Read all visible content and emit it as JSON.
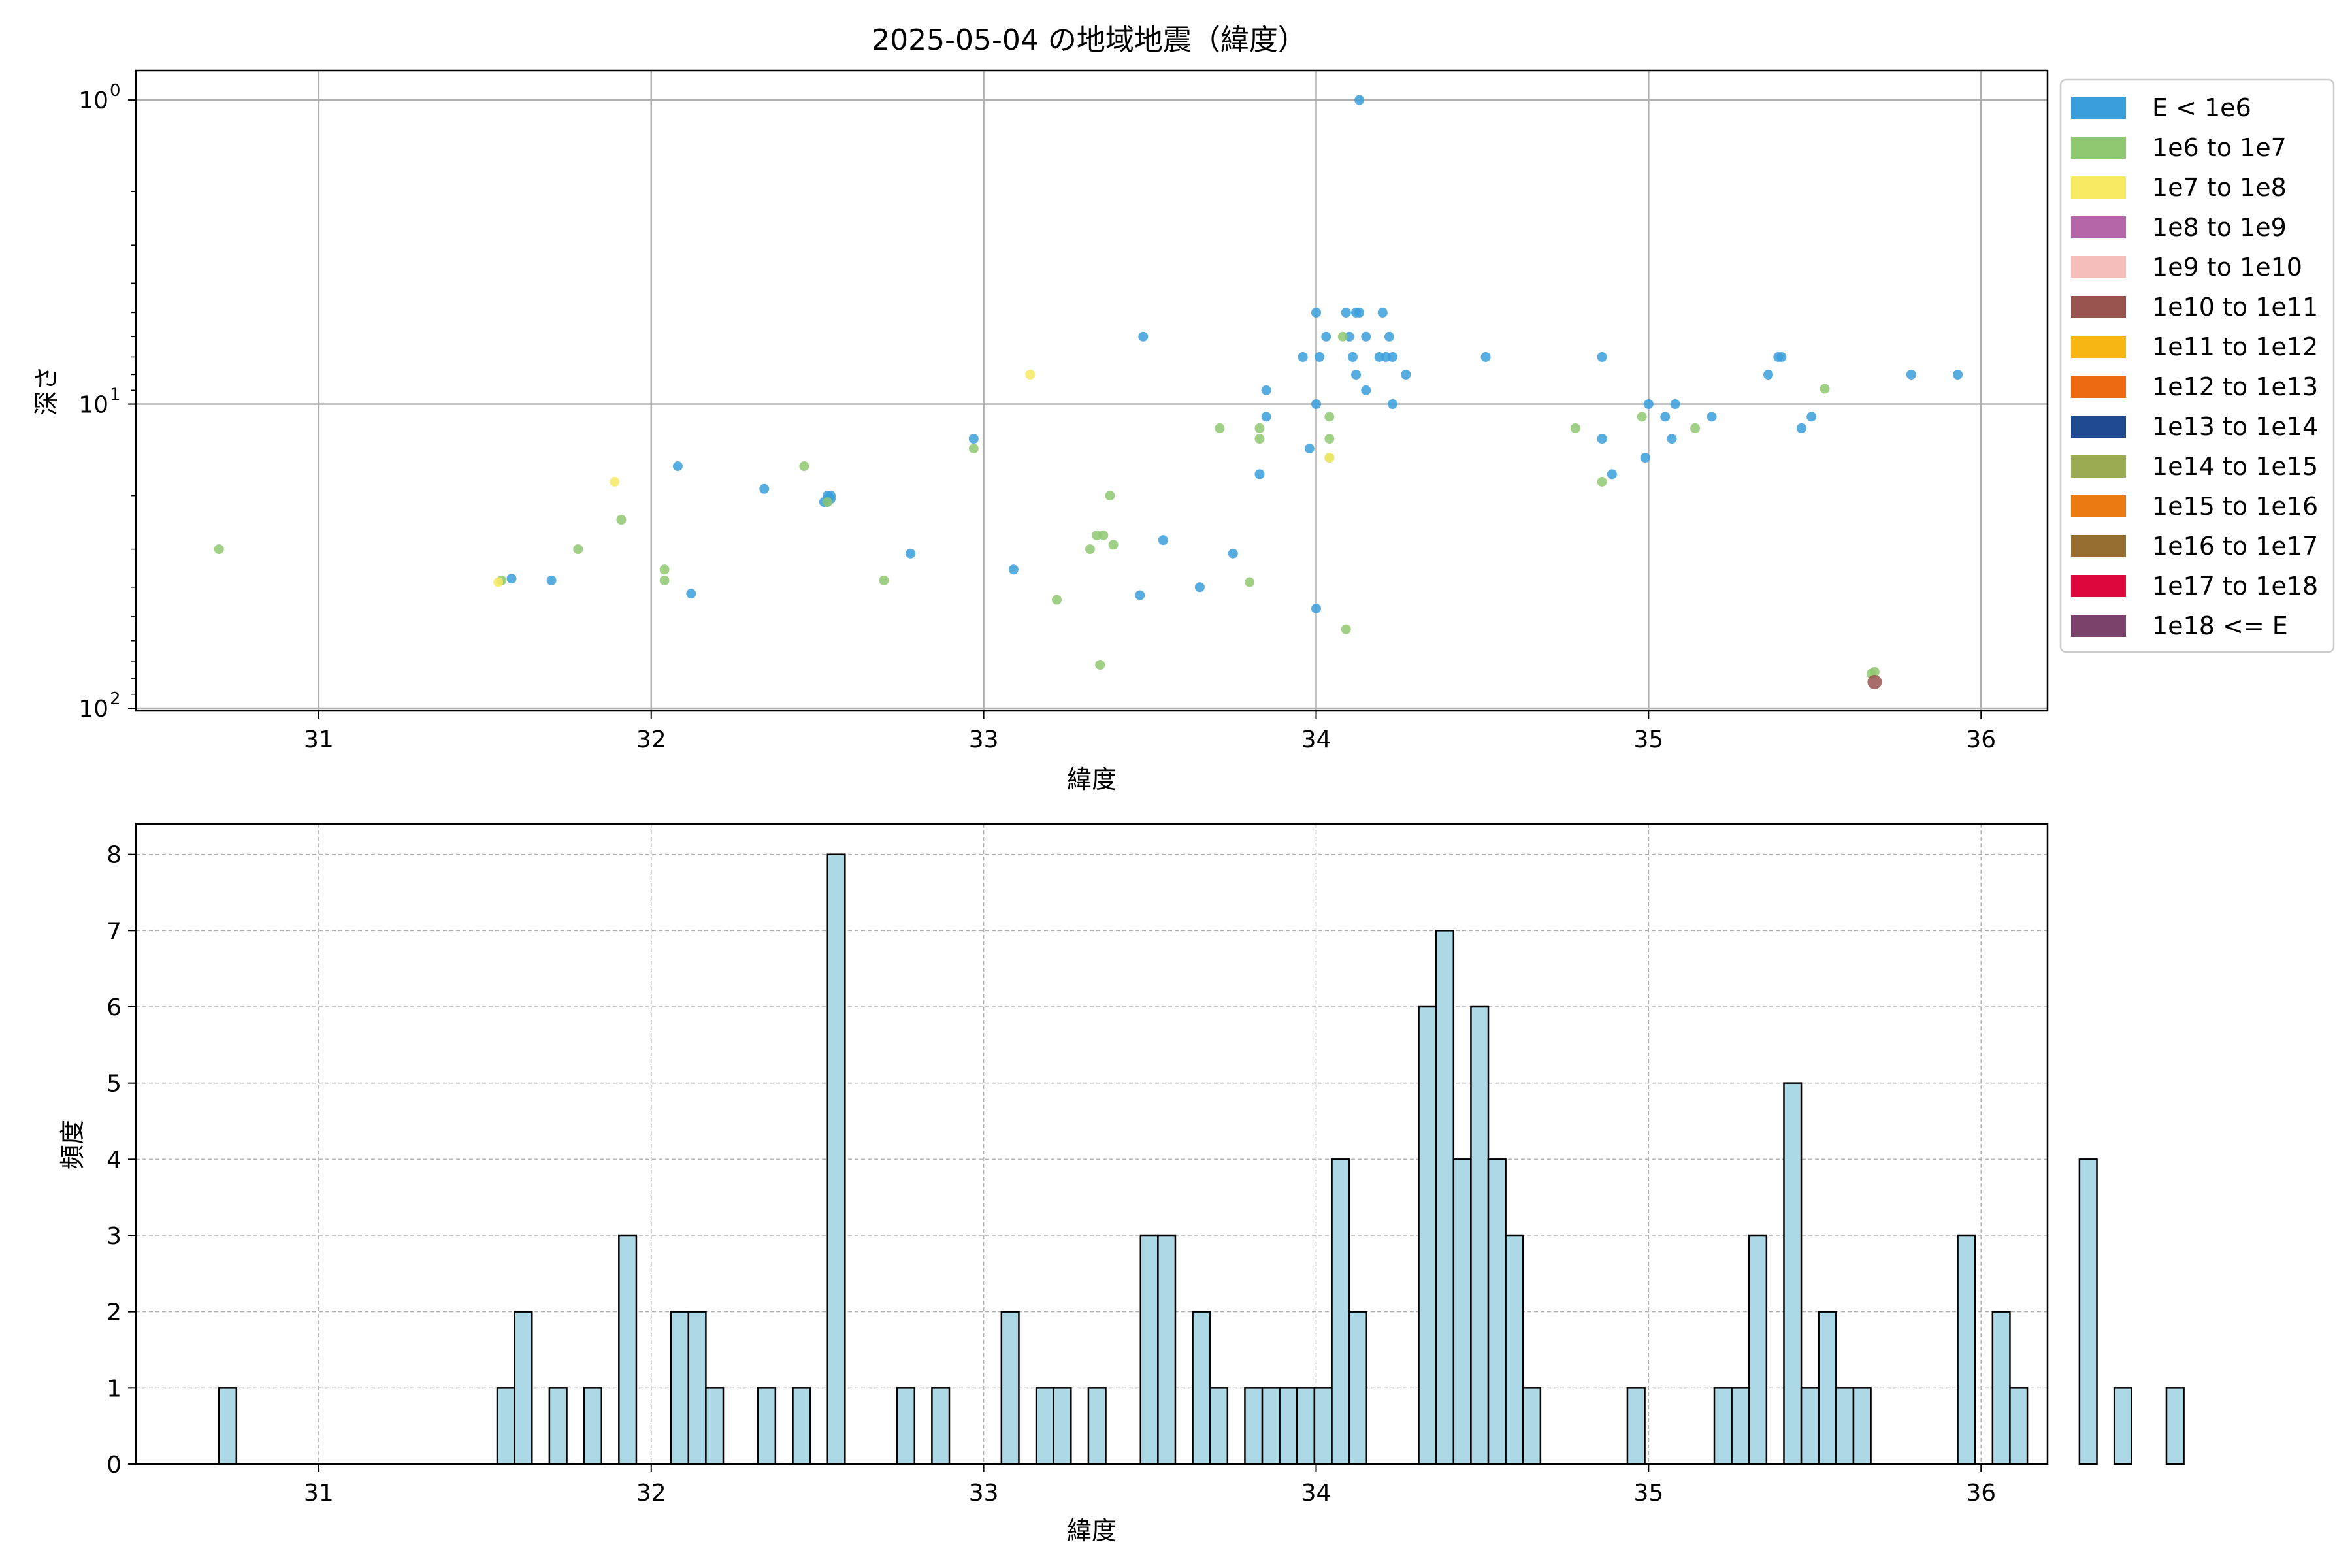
{
  "chart_data": [
    {
      "type": "scatter",
      "title": "2025-05-04 の地域地震（緯度）",
      "xlabel": "緯度",
      "ylabel": "深さ",
      "xlim": [
        30.45,
        36.2
      ],
      "ylim": [
        102,
        0.8
      ],
      "yscale": "log-inverted",
      "grid": true,
      "x_ticks": [
        31,
        32,
        33,
        34,
        35,
        36
      ],
      "x_tick_labels": [
        "31",
        "32",
        "33",
        "34",
        "35",
        "36"
      ],
      "y_ticks": [
        1,
        10,
        100
      ],
      "y_tick_labels": [
        "10",
        "10",
        "10"
      ],
      "y_tick_exponents": [
        "0",
        "1",
        "2"
      ],
      "legend_position": "outside-right",
      "legend": [
        {
          "label": "E < 1e6",
          "color": "#3a9edb"
        },
        {
          "label": "1e6 to 1e7",
          "color": "#8fc871"
        },
        {
          "label": "1e7 to 1e8",
          "color": "#f7ea63"
        },
        {
          "label": "1e8 to 1e9",
          "color": "#b566a8"
        },
        {
          "label": "1e9 to 1e10",
          "color": "#f4bfba"
        },
        {
          "label": "1e10 to 1e11",
          "color": "#995450"
        },
        {
          "label": "1e11 to 1e12",
          "color": "#f7b611"
        },
        {
          "label": "1e12 to 1e13",
          "color": "#ee6a12"
        },
        {
          "label": "1e13 to 1e14",
          "color": "#1f4a8f"
        },
        {
          "label": "1e14 to 1e15",
          "color": "#9bab52"
        },
        {
          "label": "1e15 to 1e16",
          "color": "#ec7a12"
        },
        {
          "label": "1e16 to 1e17",
          "color": "#956e2f"
        },
        {
          "label": "1e17 to 1e18",
          "color": "#dc083d"
        },
        {
          "label": "1e18 <= E",
          "color": "#7b436c"
        }
      ],
      "series": [
        {
          "legend_index": 0,
          "points": [
            [
              34.13,
              1.0
            ],
            [
              34.0,
              5.0
            ],
            [
              34.09,
              5.0
            ],
            [
              34.12,
              5.0
            ],
            [
              34.13,
              5.0
            ],
            [
              34.2,
              5.0
            ],
            [
              33.48,
              6.0
            ],
            [
              34.03,
              6.0
            ],
            [
              34.1,
              6.0
            ],
            [
              34.15,
              6.0
            ],
            [
              34.22,
              6.0
            ],
            [
              33.96,
              7.0
            ],
            [
              34.01,
              7.0
            ],
            [
              34.11,
              7.0
            ],
            [
              34.19,
              7.0
            ],
            [
              34.21,
              7.0
            ],
            [
              34.23,
              7.0
            ],
            [
              34.51,
              7.0
            ],
            [
              34.86,
              7.0
            ],
            [
              35.39,
              7.0
            ],
            [
              35.4,
              7.0
            ],
            [
              34.12,
              8.0
            ],
            [
              34.27,
              8.0
            ],
            [
              35.36,
              8.0
            ],
            [
              35.79,
              8.0
            ],
            [
              35.93,
              8.0
            ],
            [
              33.85,
              9.0
            ],
            [
              34.15,
              9.0
            ],
            [
              34.0,
              10.0
            ],
            [
              34.23,
              10.0
            ],
            [
              35.0,
              10.0
            ],
            [
              35.08,
              10.0
            ],
            [
              33.85,
              11.0
            ],
            [
              35.05,
              11.0
            ],
            [
              35.19,
              11.0
            ],
            [
              35.49,
              11.0
            ],
            [
              35.46,
              12.0
            ],
            [
              34.86,
              13.0
            ],
            [
              35.07,
              13.0
            ],
            [
              32.97,
              13.0
            ],
            [
              33.98,
              14.0
            ],
            [
              34.99,
              15.0
            ],
            [
              32.08,
              16.0
            ],
            [
              33.83,
              17.0
            ],
            [
              34.89,
              17.0
            ],
            [
              32.34,
              19.0
            ],
            [
              32.53,
              20.0
            ],
            [
              32.54,
              20.0
            ],
            [
              32.53,
              20.5
            ],
            [
              32.54,
              20.5
            ],
            [
              32.52,
              21.0
            ],
            [
              32.53,
              21.0
            ],
            [
              33.54,
              28.0
            ],
            [
              33.75,
              31.0
            ],
            [
              32.78,
              31.0
            ],
            [
              33.09,
              35.0
            ],
            [
              31.58,
              37.5
            ],
            [
              31.7,
              38.0
            ],
            [
              33.65,
              40.0
            ],
            [
              32.12,
              42.0
            ],
            [
              33.47,
              42.5
            ],
            [
              34.0,
              47.0
            ]
          ]
        },
        {
          "legend_index": 1,
          "points": [
            [
              34.08,
              6.0
            ],
            [
              35.53,
              8.9
            ],
            [
              34.04,
              11.0
            ],
            [
              34.98,
              11.0
            ],
            [
              33.71,
              12.0
            ],
            [
              34.78,
              12.0
            ],
            [
              35.14,
              12.0
            ],
            [
              33.83,
              12.0
            ],
            [
              33.83,
              13.0
            ],
            [
              34.04,
              13.0
            ],
            [
              32.97,
              14.0
            ],
            [
              34.04,
              15.0
            ],
            [
              32.46,
              16.0
            ],
            [
              34.86,
              18.0
            ],
            [
              33.38,
              20.0
            ],
            [
              32.53,
              21.0
            ],
            [
              31.91,
              24.0
            ],
            [
              33.36,
              27.0
            ],
            [
              33.34,
              27.0
            ],
            [
              33.39,
              29.0
            ],
            [
              30.7,
              30.0
            ],
            [
              31.78,
              30.0
            ],
            [
              33.32,
              30.0
            ],
            [
              32.04,
              35.0
            ],
            [
              32.04,
              38.0
            ],
            [
              32.7,
              38.0
            ],
            [
              33.8,
              38.5
            ],
            [
              31.55,
              38.0
            ],
            [
              33.22,
              44.0
            ],
            [
              34.09,
              55.0
            ],
            [
              33.35,
              72.0
            ],
            [
              35.67,
              77.0
            ],
            [
              35.68,
              76.0
            ]
          ]
        },
        {
          "legend_index": 2,
          "points": [
            [
              33.14,
              8.0
            ],
            [
              34.04,
              15.0
            ],
            [
              31.89,
              18.0
            ],
            [
              31.54,
              38.5
            ]
          ]
        },
        {
          "legend_index": 5,
          "points": [
            [
              35.68,
              82.0
            ]
          ]
        }
      ]
    },
    {
      "type": "bar",
      "xlabel": "緯度",
      "ylabel": "頻度",
      "xlim": [
        30.45,
        36.2
      ],
      "ylim": [
        0,
        8.4
      ],
      "grid": true,
      "x_ticks": [
        31,
        32,
        33,
        34,
        35,
        36
      ],
      "x_tick_labels": [
        "31",
        "32",
        "33",
        "34",
        "35",
        "36"
      ],
      "y_ticks": [
        0,
        1,
        2,
        3,
        4,
        5,
        6,
        7,
        8
      ],
      "y_tick_labels": [
        "0",
        "1",
        "2",
        "3",
        "4",
        "5",
        "6",
        "7",
        "8"
      ],
      "bar_color": "#add8e6",
      "bin_start": 30.7,
      "bin_width": 0.0523,
      "counts": [
        1,
        0,
        0,
        0,
        0,
        0,
        0,
        0,
        0,
        0,
        0,
        0,
        0,
        0,
        0,
        0,
        1,
        2,
        0,
        1,
        0,
        1,
        0,
        3,
        0,
        0,
        2,
        2,
        1,
        0,
        0,
        1,
        0,
        1,
        0,
        8,
        0,
        0,
        0,
        1,
        0,
        1,
        0,
        0,
        0,
        2,
        0,
        1,
        1,
        0,
        1,
        0,
        0,
        3,
        3,
        0,
        2,
        1,
        0,
        1,
        1,
        1,
        1,
        1,
        4,
        2,
        0,
        0,
        0,
        6,
        7,
        4,
        6,
        4,
        3,
        1,
        0,
        0,
        0,
        0,
        0,
        1,
        0,
        0,
        0,
        0,
        1,
        1,
        3,
        0,
        5,
        1,
        2,
        1,
        1,
        0,
        0,
        0,
        0,
        0,
        3,
        0,
        2,
        1,
        0,
        0,
        0,
        4,
        0,
        1,
        0,
        0,
        1
      ]
    }
  ]
}
